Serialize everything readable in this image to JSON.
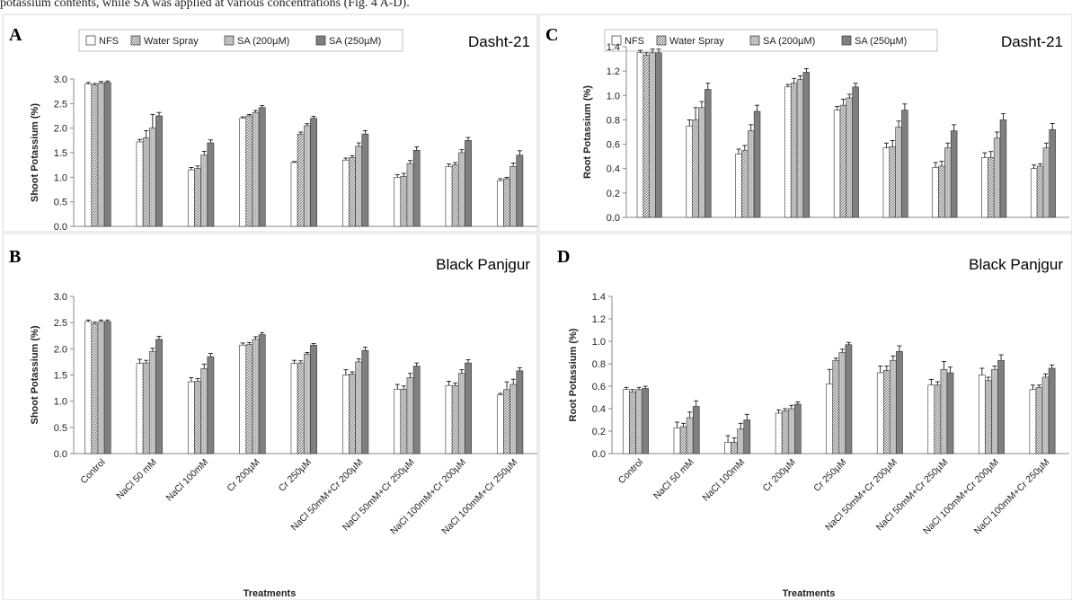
{
  "page_caption": "potassium contents, while SA was applied at various concentrations (Fig. 4 A-D).",
  "legend_items": [
    "NFS",
    "Water Spray",
    "SA (200µM)",
    "SA (250µM)"
  ],
  "x_axis_title": "Treatments",
  "categories": [
    "Control",
    "NaCl 50 mM",
    "NaCl 100mM",
    "Cr 200µM",
    "Cr 250µM",
    "NaCl 50mM+Cr 200µM",
    "NaCl 50mM+Cr 250µM",
    "NaCl 100mM+Cr 200µM",
    "NaCl 100mM+Cr 250µM"
  ],
  "series_colors": [
    "#ffffff",
    "#bdbdbd",
    "#a8a8a8",
    "#7f7f7f"
  ],
  "chart_data": [
    {
      "panel": "A",
      "variety": "Dasht-21",
      "type": "bar",
      "ylabel": "Shoot Potassium (%)",
      "ylim": [
        0,
        3.0
      ],
      "yticks": [
        "0.0",
        "0.5",
        "1.0",
        "1.5",
        "2.0",
        "2.5",
        "3.0"
      ],
      "series": [
        {
          "name": "NFS",
          "values": [
            2.9,
            1.72,
            1.15,
            2.2,
            1.3,
            1.35,
            1.0,
            1.22,
            0.93
          ],
          "errors": [
            0.03,
            0.05,
            0.05,
            0.03,
            0.02,
            0.04,
            0.05,
            0.05,
            0.04
          ]
        },
        {
          "name": "Water Spray",
          "values": [
            2.88,
            1.8,
            1.18,
            2.25,
            1.88,
            1.4,
            1.02,
            1.25,
            0.97
          ],
          "errors": [
            0.03,
            0.15,
            0.05,
            0.03,
            0.04,
            0.04,
            0.06,
            0.05,
            0.03
          ]
        },
        {
          "name": "SA (200µM)",
          "values": [
            2.92,
            2.0,
            1.45,
            2.32,
            2.05,
            1.63,
            1.28,
            1.5,
            1.22
          ],
          "errors": [
            0.03,
            0.28,
            0.08,
            0.04,
            0.04,
            0.07,
            0.06,
            0.06,
            0.07
          ]
        },
        {
          "name": "SA (250µM)",
          "values": [
            2.93,
            2.25,
            1.7,
            2.42,
            2.2,
            1.88,
            1.55,
            1.75,
            1.45
          ],
          "errors": [
            0.03,
            0.07,
            0.06,
            0.04,
            0.04,
            0.07,
            0.07,
            0.06,
            0.09
          ]
        }
      ]
    },
    {
      "panel": "B",
      "variety": "Black Panjgur",
      "type": "bar",
      "ylabel": "Shoot Potassium (%)",
      "ylim": [
        0,
        3.0
      ],
      "yticks": [
        "0.0",
        "0.5",
        "1.0",
        "1.5",
        "2.0",
        "2.5",
        "3.0"
      ],
      "series": [
        {
          "name": "NFS",
          "values": [
            2.52,
            1.72,
            1.37,
            2.07,
            1.72,
            1.5,
            1.23,
            1.3,
            1.12
          ],
          "errors": [
            0.03,
            0.08,
            0.08,
            0.04,
            0.06,
            0.1,
            0.09,
            0.08,
            0.03
          ]
        },
        {
          "name": "Water Spray",
          "values": [
            2.48,
            1.73,
            1.38,
            2.08,
            1.73,
            1.52,
            1.23,
            1.3,
            1.22
          ],
          "errors": [
            0.03,
            0.05,
            0.05,
            0.04,
            0.04,
            0.04,
            0.06,
            0.05,
            0.15
          ]
        },
        {
          "name": "SA (200µM)",
          "values": [
            2.52,
            1.95,
            1.62,
            2.18,
            1.9,
            1.75,
            1.45,
            1.53,
            1.32
          ],
          "errors": [
            0.03,
            0.06,
            0.09,
            0.05,
            0.03,
            0.06,
            0.08,
            0.07,
            0.1
          ]
        },
        {
          "name": "SA (250µM)",
          "values": [
            2.52,
            2.18,
            1.85,
            2.27,
            2.07,
            1.97,
            1.67,
            1.73,
            1.58
          ],
          "errors": [
            0.03,
            0.06,
            0.06,
            0.04,
            0.03,
            0.06,
            0.06,
            0.06,
            0.06
          ]
        }
      ]
    },
    {
      "panel": "C",
      "variety": "Dasht-21",
      "type": "bar",
      "ylabel": "Root Potassium (%)",
      "ylim": [
        0,
        1.4
      ],
      "yticks": [
        "0.0",
        "0.2",
        "0.4",
        "0.6",
        "0.8",
        "1.0",
        "1.2",
        "1.4"
      ],
      "series": [
        {
          "name": "NFS",
          "values": [
            1.35,
            0.75,
            0.52,
            1.07,
            0.88,
            0.57,
            0.41,
            0.49,
            0.4
          ],
          "errors": [
            0.02,
            0.05,
            0.04,
            0.02,
            0.03,
            0.04,
            0.04,
            0.04,
            0.03
          ]
        },
        {
          "name": "Water Spray",
          "values": [
            1.33,
            0.8,
            0.55,
            1.1,
            0.92,
            0.58,
            0.42,
            0.49,
            0.42
          ],
          "errors": [
            0.02,
            0.1,
            0.04,
            0.04,
            0.05,
            0.05,
            0.04,
            0.05,
            0.02
          ]
        },
        {
          "name": "SA (200µM)",
          "values": [
            1.35,
            0.9,
            0.71,
            1.13,
            0.98,
            0.74,
            0.57,
            0.65,
            0.57
          ],
          "errors": [
            0.03,
            0.05,
            0.05,
            0.03,
            0.03,
            0.05,
            0.04,
            0.05,
            0.04
          ]
        },
        {
          "name": "SA (250µM)",
          "values": [
            1.35,
            1.05,
            0.87,
            1.19,
            1.07,
            0.88,
            0.71,
            0.8,
            0.72
          ],
          "errors": [
            0.03,
            0.05,
            0.05,
            0.03,
            0.03,
            0.05,
            0.05,
            0.05,
            0.05
          ]
        }
      ]
    },
    {
      "panel": "D",
      "variety": "Black Panjgur",
      "type": "bar",
      "ylabel": "Root Potassium (%)",
      "ylim": [
        0,
        1.4
      ],
      "yticks": [
        "0.0",
        "0.2",
        "0.4",
        "0.6",
        "0.8",
        "1.0",
        "1.2",
        "1.4"
      ],
      "series": [
        {
          "name": "NFS",
          "values": [
            0.57,
            0.23,
            0.1,
            0.36,
            0.62,
            0.72,
            0.61,
            0.7,
            0.57
          ],
          "errors": [
            0.02,
            0.05,
            0.06,
            0.03,
            0.13,
            0.06,
            0.05,
            0.06,
            0.04
          ]
        },
        {
          "name": "Water Spray",
          "values": [
            0.55,
            0.24,
            0.1,
            0.38,
            0.83,
            0.74,
            0.61,
            0.65,
            0.59
          ],
          "errors": [
            0.02,
            0.03,
            0.04,
            0.02,
            0.02,
            0.04,
            0.03,
            0.03,
            0.02
          ]
        },
        {
          "name": "SA (200µM)",
          "values": [
            0.57,
            0.32,
            0.22,
            0.4,
            0.9,
            0.83,
            0.75,
            0.75,
            0.68
          ],
          "errors": [
            0.02,
            0.05,
            0.05,
            0.03,
            0.03,
            0.04,
            0.07,
            0.03,
            0.03
          ]
        },
        {
          "name": "SA (250µM)",
          "values": [
            0.58,
            0.42,
            0.3,
            0.44,
            0.97,
            0.91,
            0.72,
            0.83,
            0.76
          ],
          "errors": [
            0.02,
            0.05,
            0.05,
            0.02,
            0.02,
            0.05,
            0.05,
            0.05,
            0.03
          ]
        }
      ]
    }
  ]
}
